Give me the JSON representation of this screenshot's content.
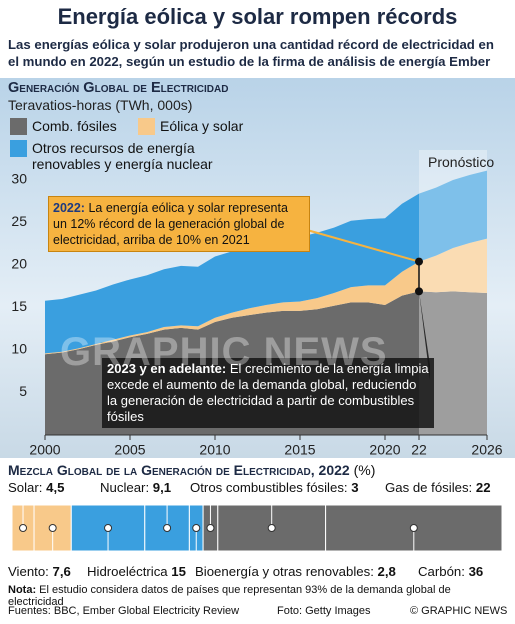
{
  "title": "Energía eólica y solar rompen récords",
  "subtitle": "Las energías eólica y solar produjeron una cantidad récord de electricidad en el mundo en 2022, según un estudio de la firma de análisis de energía Ember",
  "chart_data": [
    {
      "type": "area",
      "title": "Generación Global de Electricidad",
      "subtitle": "Teravatios-horas (TWh, 000s)",
      "stacked": true,
      "x": [
        2000,
        2001,
        2002,
        2003,
        2004,
        2005,
        2006,
        2007,
        2008,
        2009,
        2010,
        2011,
        2012,
        2013,
        2014,
        2015,
        2016,
        2017,
        2018,
        2019,
        2020,
        2021,
        2022,
        2023,
        2024,
        2025,
        2026
      ],
      "series": [
        {
          "name": "Comb. fósiles",
          "color": "#6b6b6b",
          "values": [
            9.5,
            9.7,
            10.1,
            10.6,
            11.0,
            11.5,
            11.9,
            12.4,
            12.6,
            12.4,
            13.3,
            13.8,
            14.1,
            14.4,
            14.6,
            14.6,
            14.8,
            15.2,
            15.6,
            15.6,
            15.3,
            16.4,
            16.9,
            16.8,
            16.9,
            16.8,
            16.7
          ]
        },
        {
          "name": "Eólica y solar",
          "color": "#f8c98a",
          "values": [
            0.1,
            0.1,
            0.1,
            0.1,
            0.2,
            0.2,
            0.2,
            0.3,
            0.3,
            0.4,
            0.5,
            0.6,
            0.8,
            0.9,
            1.0,
            1.1,
            1.3,
            1.5,
            1.8,
            2.0,
            2.3,
            2.8,
            3.5,
            4.3,
            5.1,
            5.8,
            6.4
          ]
        },
        {
          "name": "Otros recursos de energía renovables y energía nuclear",
          "color": "#3a9fdf",
          "values": [
            6.2,
            6.2,
            6.3,
            6.3,
            6.5,
            6.6,
            6.7,
            6.8,
            7.0,
            7.0,
            7.2,
            7.2,
            7.2,
            7.4,
            7.5,
            7.6,
            7.7,
            7.7,
            7.8,
            7.8,
            7.9,
            8.0,
            8.0,
            8.0,
            8.0,
            8.0,
            8.0
          ]
        }
      ],
      "xlim": [
        2000,
        2026
      ],
      "xticks": [
        2000,
        2005,
        2010,
        2015,
        2020,
        {
          "value": 2022,
          "label": "22"
        },
        2026
      ],
      "ylim": [
        0,
        30
      ],
      "yticks": [
        5,
        10,
        15,
        20,
        25,
        30
      ],
      "forecast": {
        "label": "Pronóstico",
        "start": 2022
      },
      "annotations": [
        {
          "bold": "2022:",
          "text": "La energía eólica y solar representa un 12% récord de la generación global de electricidad, arriba de 10% en 2021"
        },
        {
          "bold": "2023 y en adelante:",
          "text": "El crecimiento de la energía limpia excede el aumento de la demanda global, reduciendo la generación de electricidad a partir de combustibles fósiles"
        }
      ]
    },
    {
      "type": "stacked-bar",
      "title": "Mezcla Global de la Generación de Electricidad, 2022",
      "unit": "(%)",
      "segments": [
        {
          "name": "Solar:",
          "value": 4.5,
          "value_label": "4,5",
          "color": "#f8c98a"
        },
        {
          "name": "Viento:",
          "value": 7.6,
          "value_label": "7,6",
          "color": "#f8c98a"
        },
        {
          "name": "Hidroeléctrica",
          "value": 15,
          "color": "#3a9fdf"
        },
        {
          "name": "Nuclear:",
          "value": 9.1,
          "value_label": "9,1",
          "color": "#3a9fdf"
        },
        {
          "name": "Bioenergía y otras renovables:",
          "value": 2.8,
          "value_label": "2,8",
          "color": "#3a9fdf"
        },
        {
          "name": "Otros combustibles fósiles:",
          "value": 3,
          "color": "#6b6b6b"
        },
        {
          "name": "Gas de fósiles:",
          "value": 22,
          "color": "#6b6b6b"
        },
        {
          "name": "Carbón:",
          "value": 36,
          "color": "#6b6b6b"
        }
      ]
    }
  ],
  "note": {
    "bold": "Nota:",
    "text": "El estudio considera datos de países que representan 93% de la demanda global de electricidad"
  },
  "footer": {
    "sources": "Fuentes: BBC, Ember Global Electricity Review",
    "photo": "Foto: Getty Images",
    "credit": "© GRAPHIC NEWS"
  },
  "watermark": "GRAPHIC NEWS"
}
